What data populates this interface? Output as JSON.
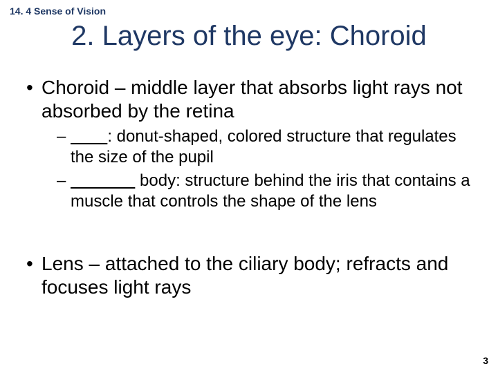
{
  "breadcrumb": {
    "text": "14. 4 Sense of Vision",
    "color": "#1f3864",
    "fontsize": 14
  },
  "title": {
    "text": "2. Layers of the eye: Choroid",
    "color": "#1f3864",
    "fontsize": 40
  },
  "body": {
    "color": "#000000",
    "bullet1_fontsize": 28,
    "bullet2_fontsize": 24,
    "items": [
      {
        "marker": "•",
        "term": "Choroid",
        "rest": " – middle layer that absorbs light rays not absorbed by the retina",
        "sub": [
          {
            "marker": "–",
            "blank": "        ",
            "rest": ": donut-shaped, colored structure that regulates the size of the pupil"
          },
          {
            "marker": "–",
            "blank": "              ",
            "rest": " body: structure behind the iris that contains a muscle that controls the shape of the lens"
          }
        ]
      },
      {
        "marker": "•",
        "term": "Lens",
        "rest": " – attached to the ciliary body; refracts and focuses light rays",
        "sub": []
      }
    ],
    "gap_between_top_bullets": 58
  },
  "page_number": {
    "text": "3",
    "color": "#000000",
    "fontsize": 14
  },
  "background_color": "#ffffff"
}
